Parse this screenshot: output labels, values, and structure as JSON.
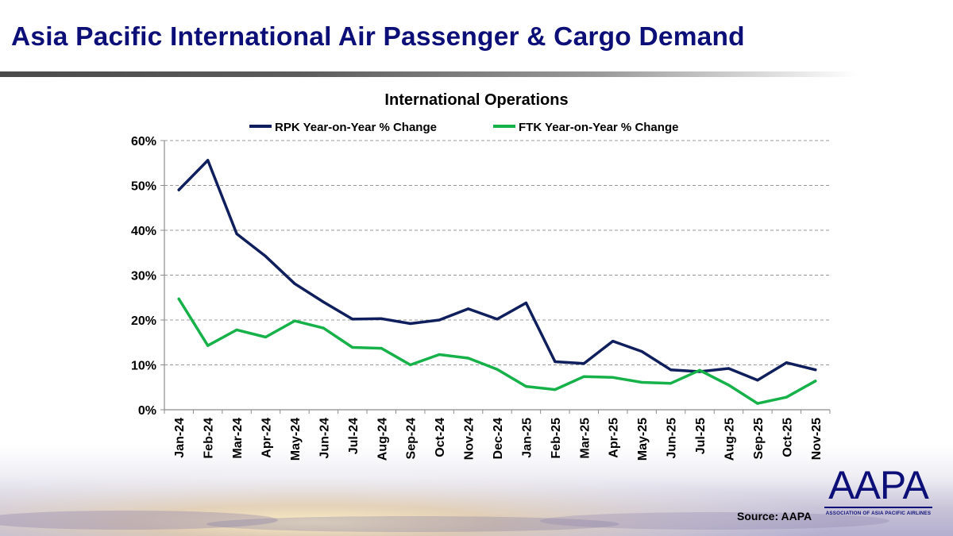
{
  "slide": {
    "title": "Asia Pacific International Air Passenger & Cargo Demand",
    "source": "Source: AAPA"
  },
  "logo": {
    "name": "AAPA",
    "tagline": "ASSOCIATION OF ASIA PACIFIC AIRLINES"
  },
  "colors": {
    "title": "#0d0f78",
    "rpk": "#0f1e5c",
    "ftk": "#17b14a",
    "grid": "#9a9a9a"
  },
  "chart_data": {
    "type": "line",
    "title": "International Operations",
    "xlabel": "",
    "ylabel": "",
    "ylim": [
      0,
      60
    ],
    "yticks": [
      0,
      10,
      20,
      30,
      40,
      50,
      60
    ],
    "ytick_labels": [
      "0%",
      "10%",
      "20%",
      "30%",
      "40%",
      "50%",
      "60%"
    ],
    "grid": true,
    "legend_position": "top",
    "categories": [
      "Jan-24",
      "Feb-24",
      "Mar-24",
      "Apr-24",
      "May-24",
      "Jun-24",
      "Jul-24",
      "Aug-24",
      "Sep-24",
      "Oct-24",
      "Nov-24",
      "Dec-24",
      "Jan-25",
      "Feb-25",
      "Mar-25",
      "Apr-25",
      "May-25",
      "Jun-25",
      "Jul-25",
      "Aug-25",
      "Sep-25",
      "Oct-25",
      "Nov-25"
    ],
    "series": [
      {
        "name": "RPK Year-on-Year % Change",
        "color": "#0f1e5c",
        "values": [
          49.0,
          55.6,
          39.2,
          34.2,
          28.1,
          24.0,
          20.2,
          20.3,
          19.2,
          20.0,
          22.5,
          20.2,
          23.8,
          10.7,
          10.3,
          15.3,
          13.0,
          8.9,
          8.5,
          9.2,
          6.6,
          10.5,
          8.9
        ]
      },
      {
        "name": "FTK Year-on-Year % Change",
        "color": "#17b14a",
        "values": [
          24.7,
          14.3,
          17.8,
          16.2,
          19.8,
          18.2,
          13.9,
          13.7,
          10.0,
          12.3,
          11.5,
          9.0,
          5.2,
          4.5,
          7.4,
          7.2,
          6.1,
          5.9,
          8.8,
          5.5,
          1.4,
          2.8,
          6.4
        ]
      }
    ]
  }
}
